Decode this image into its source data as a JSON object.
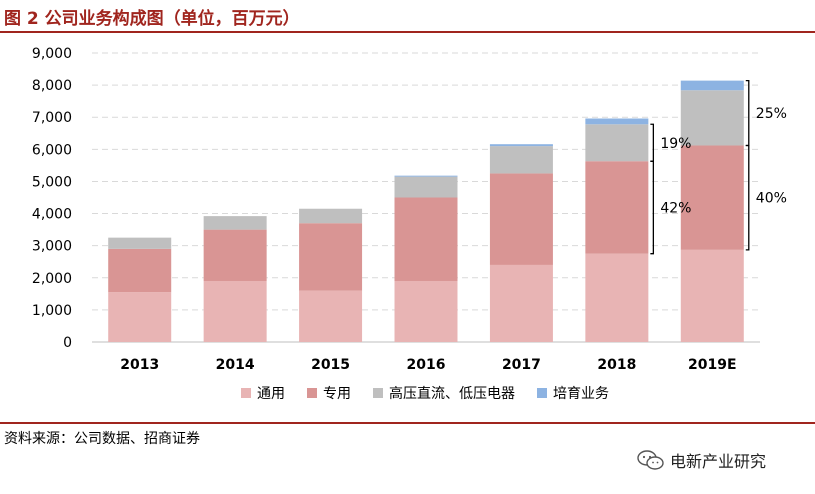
{
  "header": {
    "title": "图 2 公司业务构成图（单位，百万元）"
  },
  "footer": {
    "source": "资料来源：公司数据、招商证券",
    "brand": "电新产业研究"
  },
  "chart_data": {
    "type": "bar",
    "stacked": true,
    "title": "图 2 公司业务构成图（单位，百万元）",
    "categories": [
      "2013",
      "2014",
      "2015",
      "2016",
      "2017",
      "2018",
      "2019E"
    ],
    "series": [
      {
        "name": "通用",
        "color": "#e8b4b4",
        "values": [
          1550,
          1900,
          1600,
          1900,
          2400,
          2750,
          2870
        ]
      },
      {
        "name": "专用",
        "color": "#d99594",
        "values": [
          1350,
          1600,
          2100,
          2600,
          2850,
          2880,
          3250
        ]
      },
      {
        "name": "高压直流、低压电器",
        "color": "#bfbfbf",
        "values": [
          350,
          420,
          450,
          650,
          850,
          1150,
          1720
        ]
      },
      {
        "name": "培育业务",
        "color": "#8db3e2",
        "values": [
          0,
          0,
          0,
          30,
          60,
          180,
          300
        ]
      }
    ],
    "ylim": [
      0,
      9000
    ],
    "yticks": [
      0,
      1000,
      2000,
      3000,
      4000,
      5000,
      6000,
      7000,
      8000,
      9000
    ],
    "grid": true,
    "legend": "bottom",
    "annotations": [
      {
        "label": "19%",
        "category": "2018",
        "from": 5630,
        "to": 6780
      },
      {
        "label": "42%",
        "category": "2018",
        "from": 2750,
        "to": 5630
      },
      {
        "label": "25%",
        "category": "2019E",
        "from": 6120,
        "to": 8140
      },
      {
        "label": "40%",
        "category": "2019E",
        "from": 2870,
        "to": 6120
      }
    ]
  }
}
